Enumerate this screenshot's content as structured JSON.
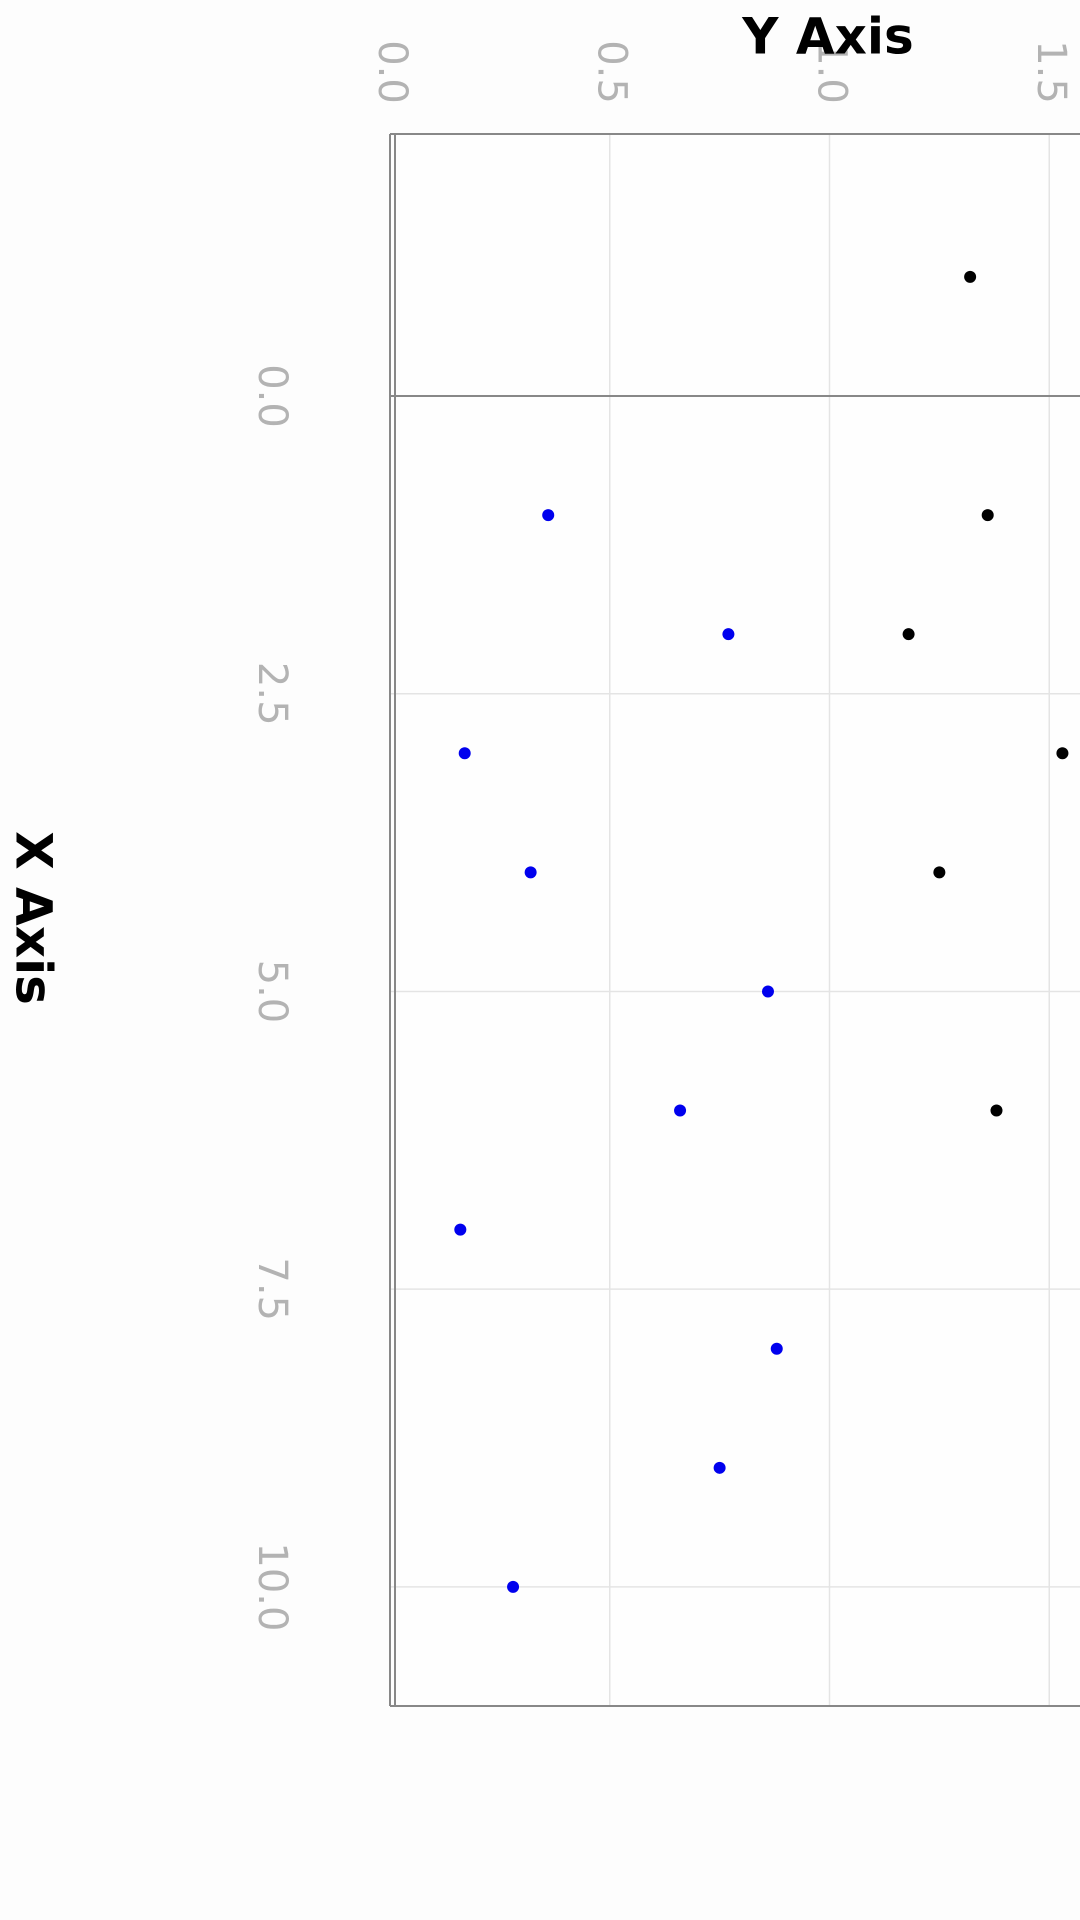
{
  "chart_data": {
    "type": "scatter",
    "xlabel": "X Axis",
    "ylabel": "Y Axis",
    "xlim": [
      -2.2,
      11.0
    ],
    "ylim": [
      0.0,
      1.57
    ],
    "x_ticks": [
      "0.0",
      "2.5",
      "5.0",
      "7.5",
      "10.0"
    ],
    "y_ticks": [
      "0.0",
      "0.5",
      "1.0",
      "1.5"
    ],
    "grid": true,
    "series": [
      {
        "color": "#000000",
        "points": [
          [
            -1,
            1.32
          ],
          [
            1,
            1.36
          ],
          [
            2,
            1.18
          ],
          [
            3,
            1.53
          ],
          [
            4,
            1.25
          ],
          [
            6,
            1.38
          ]
        ]
      },
      {
        "color": "#0000ee",
        "points": [
          [
            1,
            0.36
          ],
          [
            2,
            0.77
          ],
          [
            3,
            0.17
          ],
          [
            4,
            0.32
          ],
          [
            5,
            0.86
          ],
          [
            6,
            0.66
          ],
          [
            7,
            0.16
          ],
          [
            8,
            0.88
          ],
          [
            9,
            0.75
          ],
          [
            10,
            0.28
          ]
        ]
      }
    ]
  }
}
